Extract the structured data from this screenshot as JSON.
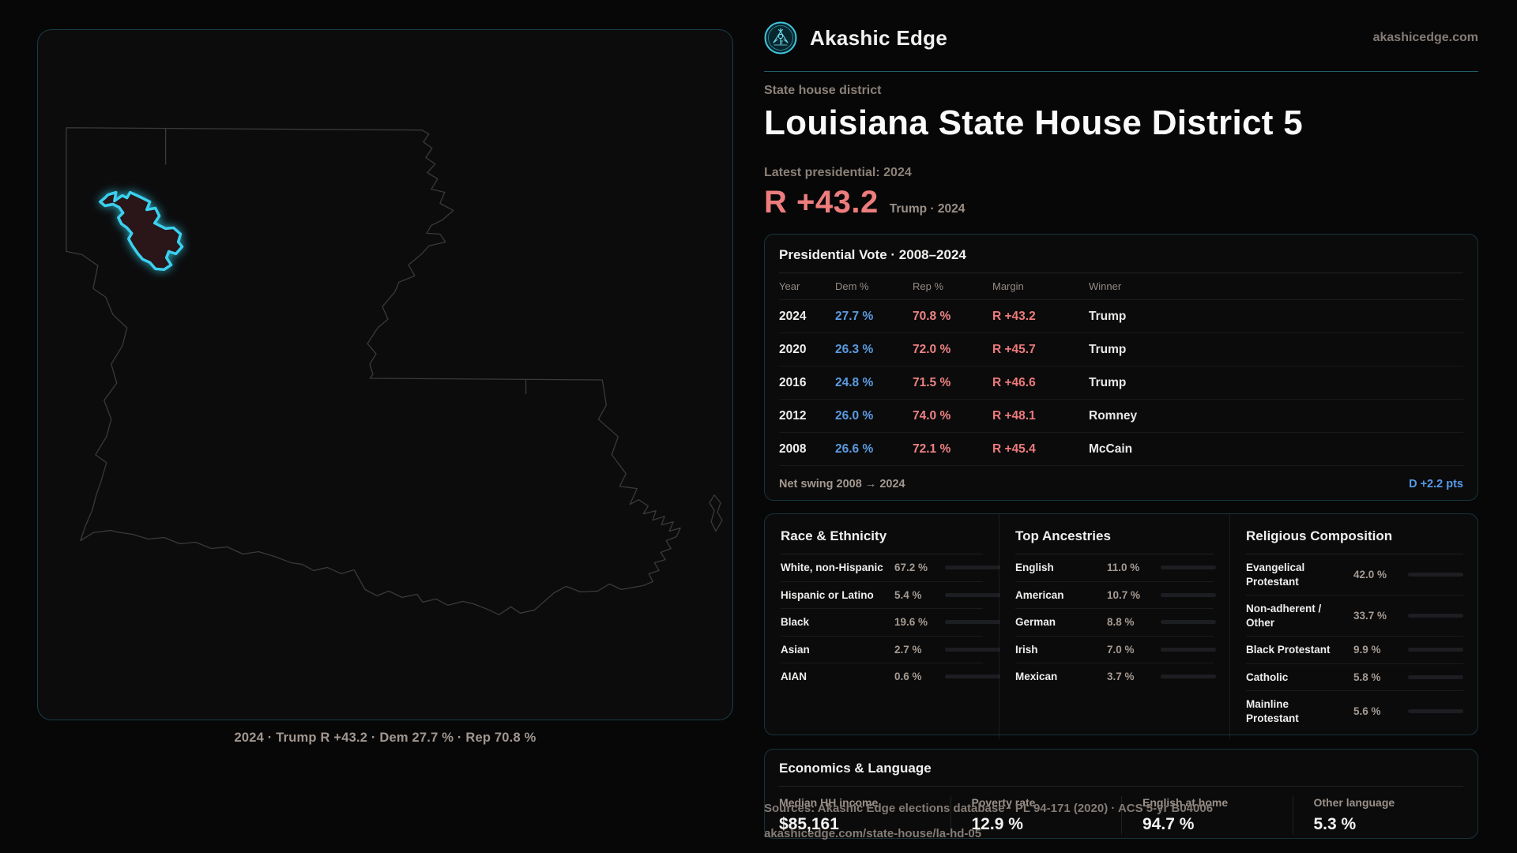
{
  "brand": {
    "name": "Akashic Edge",
    "domain": "akashicedge.com",
    "accent": "#3ad1ef"
  },
  "page": {
    "kicker": "State house district",
    "title": "Louisiana State House District 5",
    "latest_label": "Latest presidential: 2024",
    "margin_value": "R +43.2",
    "margin_context": "Trump · 2024"
  },
  "map": {
    "caption": "2024 · Trump R +43.2 · Dem 27.7 % · Rep 70.8 %",
    "district_color": "#3ad1ef",
    "district_fill": "#2a1518",
    "outline_color": "#3a3a3c"
  },
  "presidential": {
    "title": "Presidential Vote · 2008–2024",
    "columns": [
      "Year",
      "Dem %",
      "Rep %",
      "Margin",
      "Winner"
    ],
    "rows": [
      {
        "year": "2024",
        "dem": "27.7 %",
        "rep": "70.8 %",
        "margin": "R +43.2",
        "winner": "Trump"
      },
      {
        "year": "2020",
        "dem": "26.3 %",
        "rep": "72.0 %",
        "margin": "R +45.7",
        "winner": "Trump"
      },
      {
        "year": "2016",
        "dem": "24.8 %",
        "rep": "71.5 %",
        "margin": "R +46.6",
        "winner": "Trump"
      },
      {
        "year": "2012",
        "dem": "26.0 %",
        "rep": "74.0 %",
        "margin": "R +48.1",
        "winner": "Romney"
      },
      {
        "year": "2008",
        "dem": "26.6 %",
        "rep": "72.1 %",
        "margin": "R +45.4",
        "winner": "McCain"
      }
    ],
    "net_swing_label": "Net swing 2008 → 2024",
    "net_swing_value": "D +2.2 pts"
  },
  "race": {
    "title": "Race & Ethnicity",
    "rows": [
      {
        "label": "White, non-Hispanic",
        "value": "67.2 %",
        "pct": 67.2,
        "color": "#8fa0bd"
      },
      {
        "label": "Hispanic or Latino",
        "value": "5.4 %",
        "pct": 5.4,
        "color": "#e8a33c"
      },
      {
        "label": "Black",
        "value": "19.6 %",
        "pct": 19.6,
        "color": "#9b8cf0"
      },
      {
        "label": "Asian",
        "value": "2.7 %",
        "pct": 2.7,
        "color": "#2ea890"
      },
      {
        "label": "AIAN",
        "value": "0.6 %",
        "pct": 0.6,
        "color": "#e8883c"
      }
    ]
  },
  "ancestries": {
    "title": "Top Ancestries",
    "rows": [
      {
        "label": "English",
        "value": "11.0 %",
        "pct": 11.0,
        "color": "#7d93b8"
      },
      {
        "label": "American",
        "value": "10.7 %",
        "pct": 10.7,
        "color": "#7d93b8"
      },
      {
        "label": "German",
        "value": "8.8 %",
        "pct": 8.8,
        "color": "#7d93b8"
      },
      {
        "label": "Irish",
        "value": "7.0 %",
        "pct": 7.0,
        "color": "#7d93b8"
      },
      {
        "label": "Mexican",
        "value": "3.7 %",
        "pct": 3.7,
        "color": "#e8a33c"
      }
    ]
  },
  "religion": {
    "title": "Religious Composition",
    "rows": [
      {
        "label": "Evangelical Protestant",
        "value": "42.0 %",
        "pct": 42.0,
        "color": "#e06c75"
      },
      {
        "label": "Non-adherent / Other",
        "value": "33.7 %",
        "pct": 33.7,
        "color": "#7d8fa8"
      },
      {
        "label": "Black Protestant",
        "value": "9.9 %",
        "pct": 9.9,
        "color": "#9b8cf0"
      },
      {
        "label": "Catholic",
        "value": "5.8 %",
        "pct": 5.8,
        "color": "#e8c23c"
      },
      {
        "label": "Mainline Protestant",
        "value": "5.6 %",
        "pct": 5.6,
        "color": "#4f96e8"
      }
    ]
  },
  "economics": {
    "title": "Economics & Language",
    "stats": [
      {
        "label": "Median HH income",
        "value": "$85,161"
      },
      {
        "label": "Poverty rate",
        "value": "12.9 %"
      },
      {
        "label": "English at home",
        "value": "94.7 %"
      },
      {
        "label": "Other language",
        "value": "5.3 %"
      }
    ]
  },
  "footer": {
    "line1": "Sources: Akashic Edge elections database · PL 94-171 (2020) · ACS 5-yr B04006",
    "line2": "akashicedge.com/state-house/la-hd-05"
  }
}
